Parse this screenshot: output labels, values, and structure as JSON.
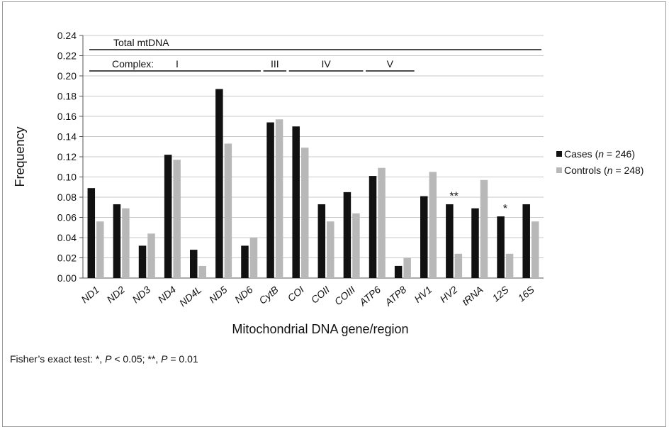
{
  "chart_data": {
    "type": "bar",
    "xlabel": "Mitochondrial DNA gene/region",
    "ylabel": "Frequency",
    "ylim": [
      0,
      0.24
    ],
    "ytick_labels": [
      "0.00",
      "0.02",
      "0.04",
      "0.06",
      "0.08",
      "0.10",
      "0.12",
      "0.14",
      "0.16",
      "0.18",
      "0.20",
      "0.22",
      "0.24"
    ],
    "grid": true,
    "legend_position": "right",
    "categories": [
      "ND1",
      "ND2",
      "ND3",
      "ND4",
      "ND4L",
      "ND5",
      "ND6",
      "CytB",
      "COI",
      "COII",
      "COIII",
      "ATP6",
      "ATP8",
      "HV1",
      "HV2",
      "tRNA",
      "12S",
      "16S"
    ],
    "series": [
      {
        "name": "Cases",
        "n_label": "(n = 246)",
        "color": "#111111",
        "values": [
          0.089,
          0.073,
          0.032,
          0.122,
          0.028,
          0.187,
          0.032,
          0.154,
          0.15,
          0.073,
          0.085,
          0.101,
          0.012,
          0.081,
          0.073,
          0.069,
          0.061,
          0.073
        ]
      },
      {
        "name": "Controls",
        "n_label": "(n = 248)",
        "color": "#b8b8b8",
        "values": [
          0.056,
          0.069,
          0.044,
          0.117,
          0.012,
          0.133,
          0.04,
          0.157,
          0.129,
          0.056,
          0.064,
          0.109,
          0.02,
          0.105,
          0.024,
          0.097,
          0.024,
          0.056
        ]
      }
    ],
    "annotations": [
      {
        "category": "HV2",
        "text": "**",
        "y": 0.083
      },
      {
        "category": "12S",
        "text": "*",
        "y": 0.071
      }
    ],
    "regions": {
      "total_label": "Total mtDNA",
      "complex_label": "Complex:",
      "complexes": [
        {
          "label": "I",
          "from": "ND1",
          "to": "ND6"
        },
        {
          "label": "III",
          "from": "CytB",
          "to": "CytB"
        },
        {
          "label": "IV",
          "from": "COI",
          "to": "COIII"
        },
        {
          "label": "V",
          "from": "ATP6",
          "to": "ATP8"
        }
      ]
    }
  },
  "footnote": {
    "prefix": "Fisher’s exact test: *, ",
    "p1_symbol": "P",
    "p1_value": " < 0.05; **, ",
    "p2_symbol": "P",
    "p2_value": " = 0.01"
  }
}
